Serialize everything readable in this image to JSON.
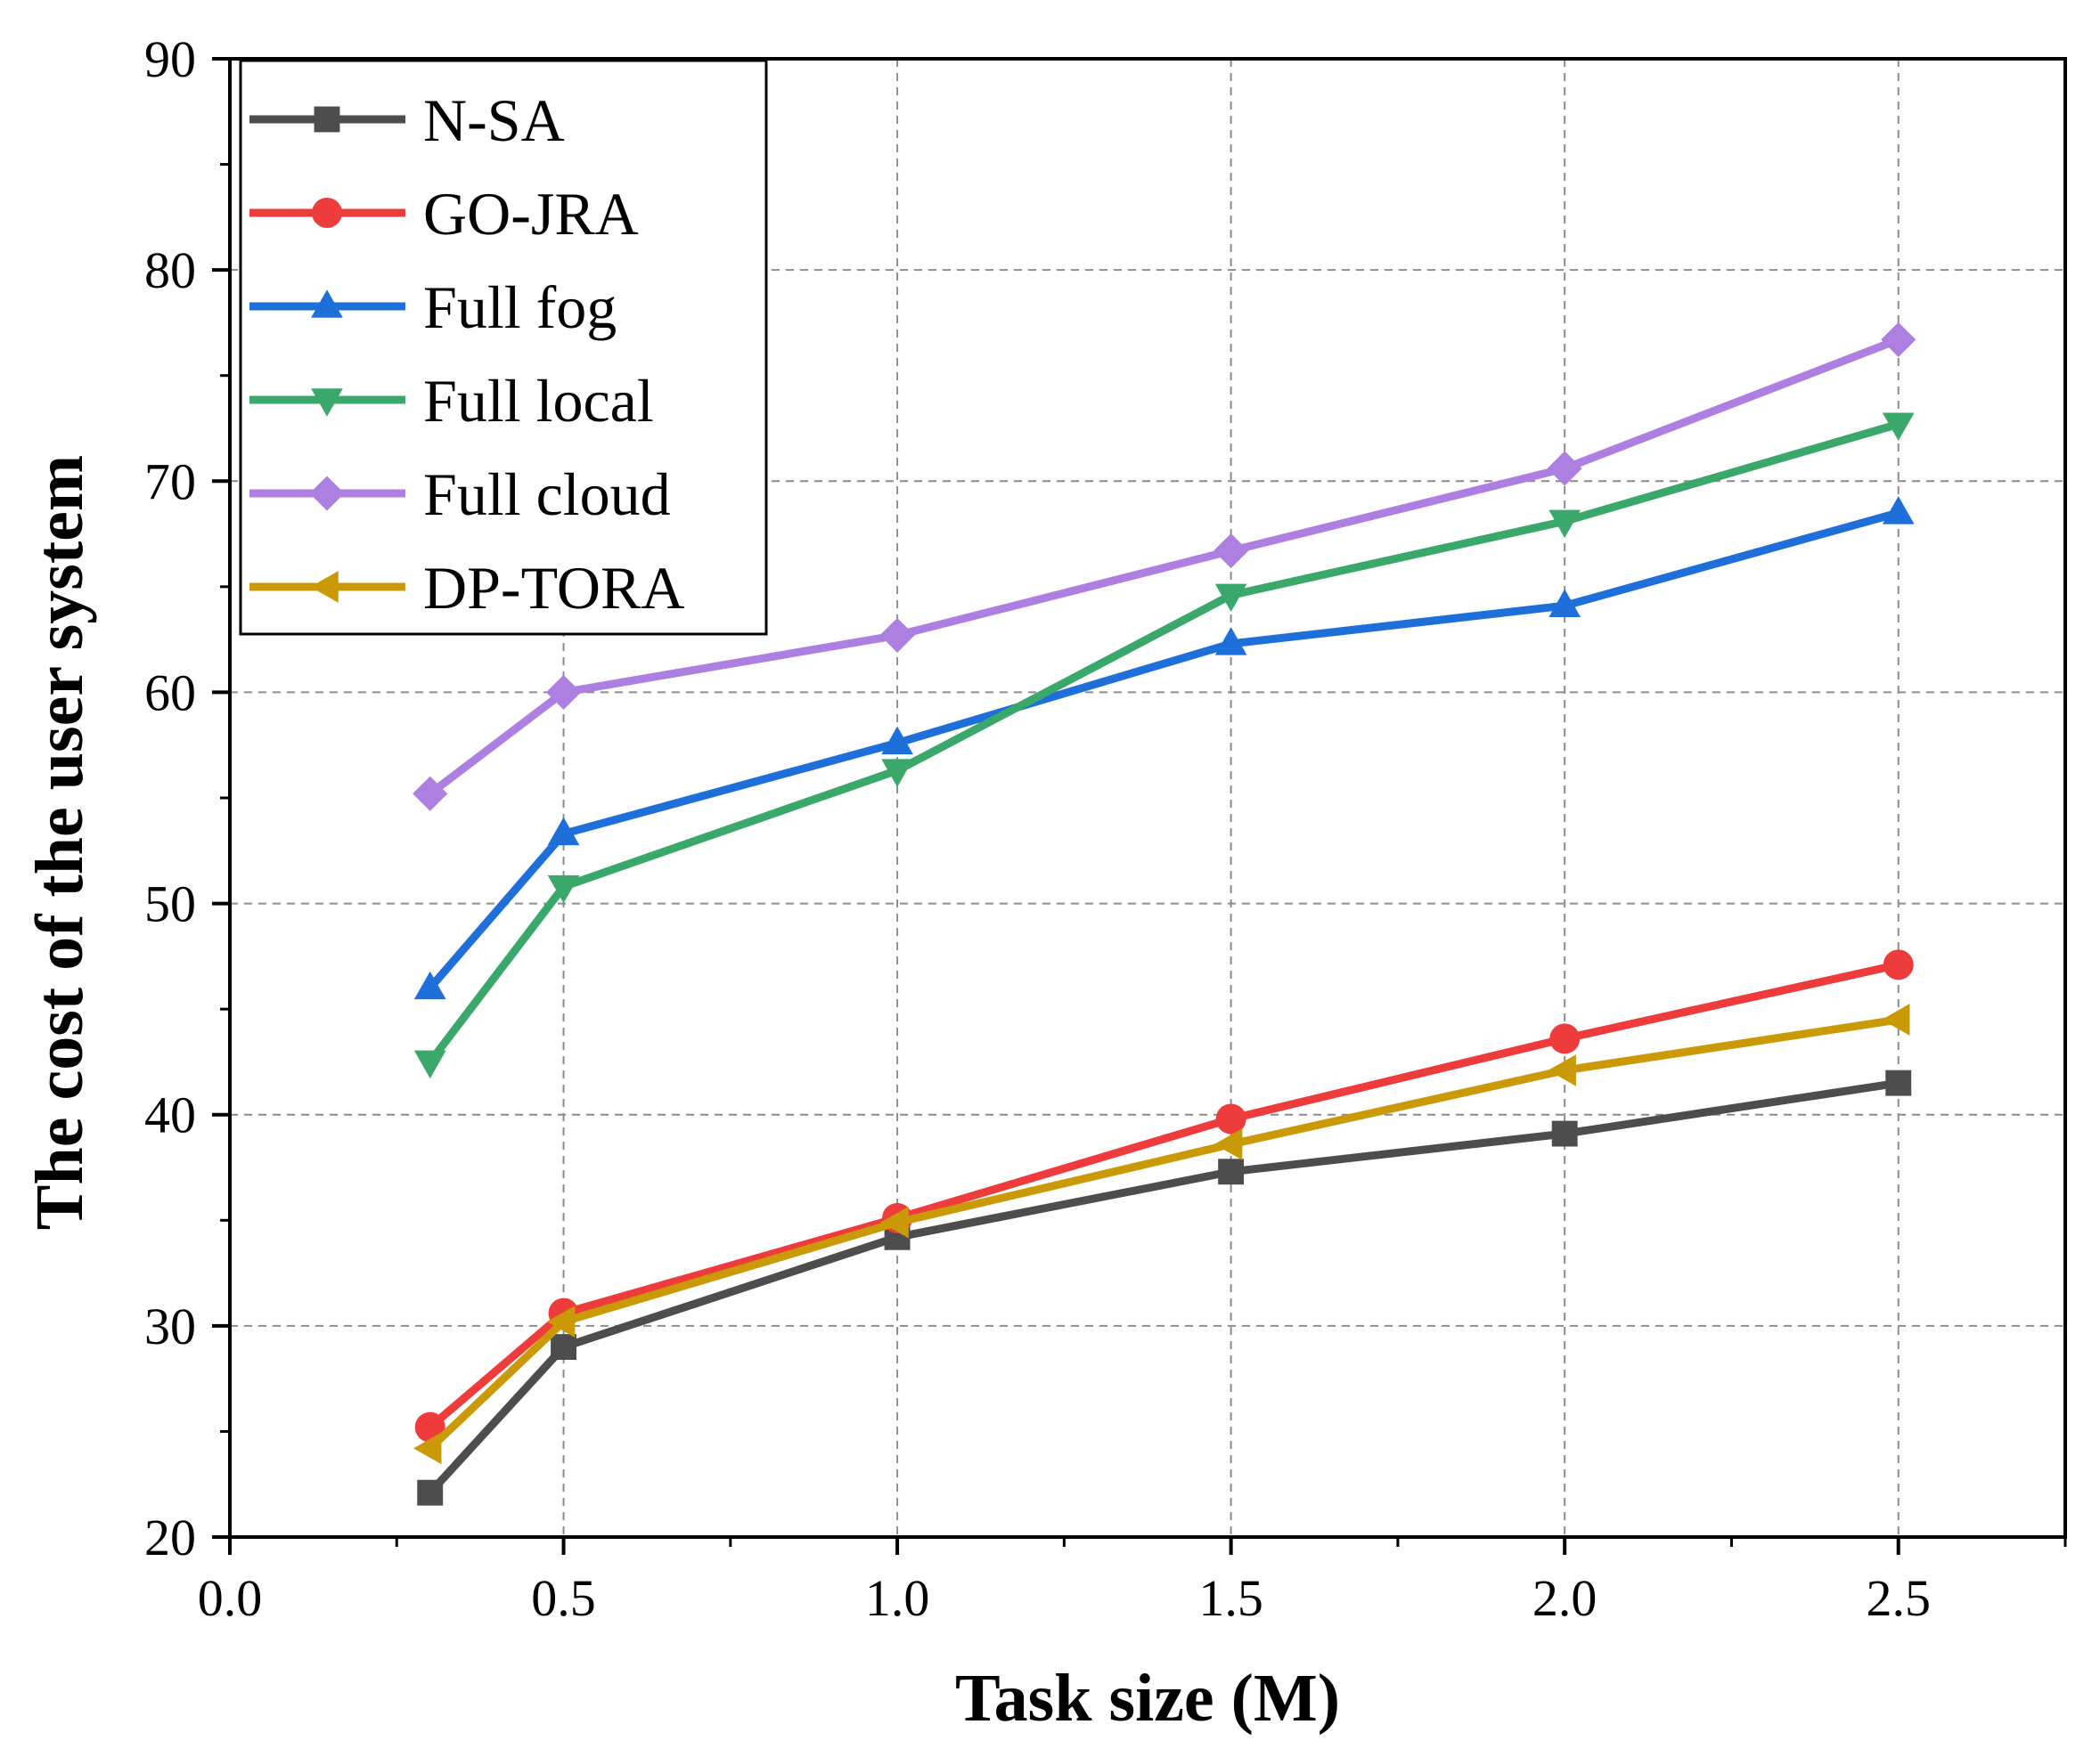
{
  "chart_data": {
    "type": "line",
    "title": "",
    "xlabel": "Task size (M)",
    "ylabel": "The cost of the user system",
    "xlim": [
      0.0,
      2.75
    ],
    "ylim": [
      20,
      90
    ],
    "xticks": [
      0.0,
      0.5,
      1.0,
      1.5,
      2.0,
      2.5
    ],
    "xtick_labels": [
      "0.0",
      "0.5",
      "1.0",
      "1.5",
      "2.0",
      "2.5"
    ],
    "yticks": [
      20,
      30,
      40,
      50,
      60,
      70,
      80,
      90
    ],
    "ytick_labels": [
      "20",
      "30",
      "40",
      "50",
      "60",
      "70",
      "80",
      "90"
    ],
    "grid": true,
    "legend_position": "top-left",
    "x": [
      0.3,
      0.5,
      1.0,
      1.5,
      2.0,
      2.5
    ],
    "series": [
      {
        "name": "N-SA",
        "color": "#4d4d4d",
        "marker": "square",
        "values": [
          22.1,
          29.0,
          34.2,
          37.3,
          39.1,
          41.5
        ]
      },
      {
        "name": "GO-JRA",
        "color": "#ee3b3b",
        "marker": "circle",
        "values": [
          25.2,
          30.6,
          35.1,
          39.8,
          43.6,
          47.1
        ]
      },
      {
        "name": "Full fog",
        "color": "#1e6fd9",
        "marker": "triangle-up",
        "values": [
          46.0,
          53.3,
          57.6,
          62.3,
          64.1,
          68.5
        ]
      },
      {
        "name": "Full local",
        "color": "#3aa86b",
        "marker": "triangle-down",
        "values": [
          42.5,
          50.8,
          56.3,
          64.6,
          68.1,
          72.7
        ]
      },
      {
        "name": "Full cloud",
        "color": "#ad7fe0",
        "marker": "diamond",
        "values": [
          55.2,
          60.0,
          62.7,
          66.7,
          70.6,
          76.7
        ]
      },
      {
        "name": "DP-TORA",
        "color": "#c99a06",
        "marker": "triangle-left",
        "values": [
          24.2,
          30.2,
          34.9,
          38.6,
          42.1,
          44.5
        ]
      }
    ]
  }
}
